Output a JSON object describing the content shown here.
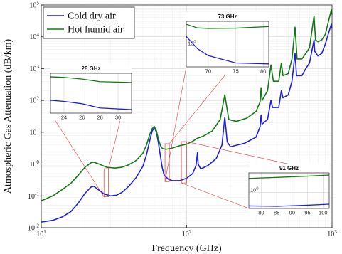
{
  "chart_data": {
    "type": "line",
    "xlabel": "Frequency (GHz)",
    "ylabel": "Atmospheric Gas Attenuation (dB/km)",
    "xscale": "log",
    "yscale": "log",
    "xlim": [
      10,
      1000
    ],
    "ylim": [
      0.01,
      100000
    ],
    "x_tick_labels": [
      "10",
      "10",
      "10"
    ],
    "x_tick_exponents": [
      "1",
      "2",
      "3"
    ],
    "y_tick_labels": [
      "10",
      "10",
      "10",
      "10",
      "10",
      "10",
      "10",
      "10"
    ],
    "y_tick_exponents": [
      "-2",
      "-1",
      "0",
      "1",
      "2",
      "3",
      "4",
      "5"
    ],
    "grid": true,
    "legend_position": "top-left",
    "series": [
      {
        "name": "Cold dry air",
        "color": "#1f1fe0",
        "points": [
          [
            10,
            0.015
          ],
          [
            12,
            0.017
          ],
          [
            14,
            0.022
          ],
          [
            16,
            0.032
          ],
          [
            18,
            0.06
          ],
          [
            20,
            0.12
          ],
          [
            22,
            0.19
          ],
          [
            23,
            0.2
          ],
          [
            25,
            0.15
          ],
          [
            27,
            0.115
          ],
          [
            30,
            0.1
          ],
          [
            33,
            0.105
          ],
          [
            36,
            0.13
          ],
          [
            40,
            0.2
          ],
          [
            45,
            0.38
          ],
          [
            50,
            0.85
          ],
          [
            53,
            2.0
          ],
          [
            56,
            6.0
          ],
          [
            58,
            11
          ],
          [
            60,
            14
          ],
          [
            62,
            10
          ],
          [
            64,
            4.5
          ],
          [
            66,
            1.8
          ],
          [
            68,
            0.75
          ],
          [
            70,
            0.45
          ],
          [
            75,
            0.33
          ],
          [
            80,
            0.3
          ],
          [
            90,
            0.3
          ],
          [
            100,
            0.36
          ],
          [
            110,
            0.5
          ],
          [
            116,
            0.9
          ],
          [
            118.75,
            2.3
          ],
          [
            120,
            1.0
          ],
          [
            125,
            0.7
          ],
          [
            140,
            0.9
          ],
          [
            160,
            1.5
          ],
          [
            175,
            4.0
          ],
          [
            183,
            30
          ],
          [
            190,
            5
          ],
          [
            200,
            3.5
          ],
          [
            250,
            4.5
          ],
          [
            300,
            7
          ],
          [
            320,
            15
          ],
          [
            325,
            35
          ],
          [
            330,
            18
          ],
          [
            360,
            25
          ],
          [
            380,
            100
          ],
          [
            390,
            60
          ],
          [
            430,
            60
          ],
          [
            448,
            200
          ],
          [
            460,
            120
          ],
          [
            500,
            150
          ],
          [
            530,
            400
          ],
          [
            557,
            3000
          ],
          [
            570,
            600
          ],
          [
            620,
            600
          ],
          [
            660,
            1000
          ],
          [
            700,
            1500
          ],
          [
            752,
            8000
          ],
          [
            760,
            3500
          ],
          [
            800,
            2500
          ],
          [
            850,
            3000
          ],
          [
            900,
            6000
          ],
          [
            988,
            25000
          ],
          [
            1000,
            18000
          ]
        ]
      },
      {
        "name": "Hot humid air",
        "color": "#137a13",
        "points": [
          [
            10,
            0.07
          ],
          [
            12,
            0.1
          ],
          [
            14,
            0.16
          ],
          [
            16,
            0.25
          ],
          [
            18,
            0.45
          ],
          [
            20,
            0.8
          ],
          [
            22,
            1.1
          ],
          [
            23,
            1.15
          ],
          [
            25,
            1.0
          ],
          [
            28,
            0.8
          ],
          [
            32,
            0.75
          ],
          [
            36,
            0.8
          ],
          [
            40,
            0.95
          ],
          [
            45,
            1.3
          ],
          [
            50,
            2.2
          ],
          [
            53,
            4.0
          ],
          [
            56,
            9
          ],
          [
            58,
            13
          ],
          [
            60,
            15
          ],
          [
            62,
            11
          ],
          [
            64,
            6.0
          ],
          [
            66,
            3.8
          ],
          [
            68,
            3.1
          ],
          [
            72,
            2.9
          ],
          [
            80,
            3.2
          ],
          [
            90,
            3.8
          ],
          [
            100,
            4.2
          ],
          [
            110,
            5.2
          ],
          [
            118.75,
            6.5
          ],
          [
            130,
            7.5
          ],
          [
            150,
            11
          ],
          [
            170,
            25
          ],
          [
            183,
            150
          ],
          [
            195,
            25
          ],
          [
            220,
            22
          ],
          [
            260,
            28
          ],
          [
            300,
            45
          ],
          [
            320,
            90
          ],
          [
            325,
            250
          ],
          [
            330,
            100
          ],
          [
            360,
            200
          ],
          [
            380,
            1300
          ],
          [
            395,
            400
          ],
          [
            430,
            400
          ],
          [
            448,
            1500
          ],
          [
            460,
            600
          ],
          [
            500,
            700
          ],
          [
            530,
            2000
          ],
          [
            557,
            20000
          ],
          [
            575,
            2000
          ],
          [
            620,
            2000
          ],
          [
            660,
            3000
          ],
          [
            700,
            4500
          ],
          [
            752,
            45000
          ],
          [
            770,
            8000
          ],
          [
            800,
            7000
          ],
          [
            850,
            8000
          ],
          [
            900,
            12000
          ],
          [
            988,
            70000
          ],
          [
            1000,
            50000
          ]
        ]
      }
    ],
    "insets": [
      {
        "title": "28 GHz",
        "xlim": [
          22.5,
          31.5
        ],
        "x_tick_labels": [
          "24",
          "26",
          "28",
          "30"
        ],
        "y_tick_label": "10",
        "y_tick_exponent": "0",
        "zoom_region_x": [
          27,
          29
        ],
        "green": [
          [
            22.5,
            0.62
          ],
          [
            24,
            0.6
          ],
          [
            26,
            0.55
          ],
          [
            28,
            0.48
          ],
          [
            31.5,
            0.46
          ]
        ],
        "blue": [
          [
            22.5,
            0.18
          ],
          [
            24,
            0.17
          ],
          [
            26,
            0.15
          ],
          [
            28,
            0.12
          ],
          [
            31.5,
            0.11
          ]
        ]
      },
      {
        "title": "73 GHz",
        "xlim": [
          66,
          81
        ],
        "x_tick_labels": [
          "70",
          "75",
          "80"
        ],
        "y_tick_label": "10",
        "y_tick_exponent": "0",
        "zoom_region_x": [
          71,
          76
        ],
        "green": [
          [
            66,
            3.8
          ],
          [
            68,
            3.05
          ],
          [
            70,
            2.95
          ],
          [
            75,
            3.0
          ],
          [
            81,
            3.3
          ]
        ],
        "blue": [
          [
            66,
            1.8
          ],
          [
            68,
            0.85
          ],
          [
            70,
            0.55
          ],
          [
            75,
            0.35
          ],
          [
            81,
            0.33
          ]
        ]
      },
      {
        "title": "91 GHz",
        "xlim": [
          76,
          102
        ],
        "x_tick_labels": [
          "80",
          "85",
          "90",
          "95",
          "100"
        ],
        "y_tick_label": "10",
        "y_tick_exponent": "0",
        "zoom_region_x": [
          92,
          100
        ],
        "green": [
          [
            76,
            3.3
          ],
          [
            85,
            3.6
          ],
          [
            95,
            4.0
          ],
          [
            102,
            4.4
          ]
        ],
        "blue": [
          [
            76,
            0.31
          ],
          [
            85,
            0.3
          ],
          [
            95,
            0.33
          ],
          [
            102,
            0.36
          ]
        ]
      }
    ]
  }
}
